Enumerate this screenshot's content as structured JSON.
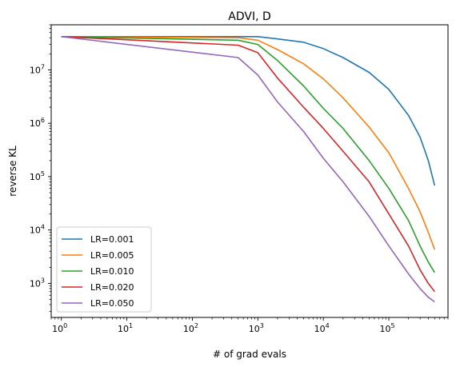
{
  "chart_data": {
    "type": "line",
    "title": "ADVI, D",
    "xlabel": "# of grad evals",
    "ylabel": "reverse KL",
    "xscale": "log",
    "yscale": "log",
    "xlim": [
      0.7,
      800000
    ],
    "ylim": [
      230,
      70000000
    ],
    "grid": false,
    "legend_position": "lower left",
    "x_ticks": [
      {
        "value": 1,
        "base": "10",
        "exp": "0"
      },
      {
        "value": 10,
        "base": "10",
        "exp": "1"
      },
      {
        "value": 100,
        "base": "10",
        "exp": "2"
      },
      {
        "value": 1000,
        "base": "10",
        "exp": "3"
      },
      {
        "value": 10000,
        "base": "10",
        "exp": "4"
      },
      {
        "value": 100000,
        "base": "10",
        "exp": "5"
      }
    ],
    "y_ticks": [
      {
        "value": 1000,
        "base": "10",
        "exp": "3"
      },
      {
        "value": 10000,
        "base": "10",
        "exp": "4"
      },
      {
        "value": 100000,
        "base": "10",
        "exp": "5"
      },
      {
        "value": 1000000,
        "base": "10",
        "exp": "6"
      },
      {
        "value": 10000000,
        "base": "10",
        "exp": "7"
      }
    ],
    "series": [
      {
        "name": "LR=0.001",
        "color": "#1f77b4",
        "points": [
          [
            1,
            42000000
          ],
          [
            500,
            42000000
          ],
          [
            1000,
            42000000
          ],
          [
            2000,
            38000000
          ],
          [
            5000,
            33000000
          ],
          [
            10000,
            25000000
          ],
          [
            20000,
            17000000
          ],
          [
            50000,
            9000000
          ],
          [
            100000,
            4300000
          ],
          [
            200000,
            1400000
          ],
          [
            300000,
            550000
          ],
          [
            400000,
            200000
          ],
          [
            500000,
            68000
          ]
        ]
      },
      {
        "name": "LR=0.005",
        "color": "#ff7f0e",
        "points": [
          [
            1,
            42000000
          ],
          [
            500,
            40000000
          ],
          [
            1000,
            36000000
          ],
          [
            2000,
            24000000
          ],
          [
            5000,
            13000000
          ],
          [
            10000,
            6800000
          ],
          [
            20000,
            3000000
          ],
          [
            50000,
            850000
          ],
          [
            100000,
            280000
          ],
          [
            200000,
            60000
          ],
          [
            300000,
            22000
          ],
          [
            400000,
            9000
          ],
          [
            500000,
            4300
          ]
        ]
      },
      {
        "name": "LR=0.010",
        "color": "#2ca02c",
        "points": [
          [
            1,
            42000000
          ],
          [
            500,
            36000000
          ],
          [
            1000,
            30000000
          ],
          [
            2000,
            15000000
          ],
          [
            5000,
            5000000
          ],
          [
            10000,
            1900000
          ],
          [
            20000,
            800000
          ],
          [
            50000,
            200000
          ],
          [
            100000,
            60000
          ],
          [
            200000,
            15000
          ],
          [
            300000,
            5000
          ],
          [
            400000,
            2500
          ],
          [
            500000,
            1600
          ]
        ]
      },
      {
        "name": "LR=0.020",
        "color": "#d62728",
        "points": [
          [
            1,
            42000000
          ],
          [
            500,
            29000000
          ],
          [
            1000,
            21000000
          ],
          [
            2000,
            7000000
          ],
          [
            5000,
            2000000
          ],
          [
            10000,
            800000
          ],
          [
            20000,
            300000
          ],
          [
            50000,
            80000
          ],
          [
            100000,
            20000
          ],
          [
            200000,
            5000
          ],
          [
            300000,
            1800
          ],
          [
            400000,
            1000
          ],
          [
            500000,
            700
          ]
        ]
      },
      {
        "name": "LR=0.050",
        "color": "#9467bd",
        "points": [
          [
            1,
            42000000
          ],
          [
            500,
            17000000
          ],
          [
            1000,
            8000000
          ],
          [
            2000,
            2500000
          ],
          [
            5000,
            700000
          ],
          [
            10000,
            220000
          ],
          [
            20000,
            80000
          ],
          [
            50000,
            18000
          ],
          [
            100000,
            5000
          ],
          [
            200000,
            1500
          ],
          [
            300000,
            800
          ],
          [
            400000,
            550
          ],
          [
            500000,
            450
          ]
        ]
      }
    ]
  }
}
